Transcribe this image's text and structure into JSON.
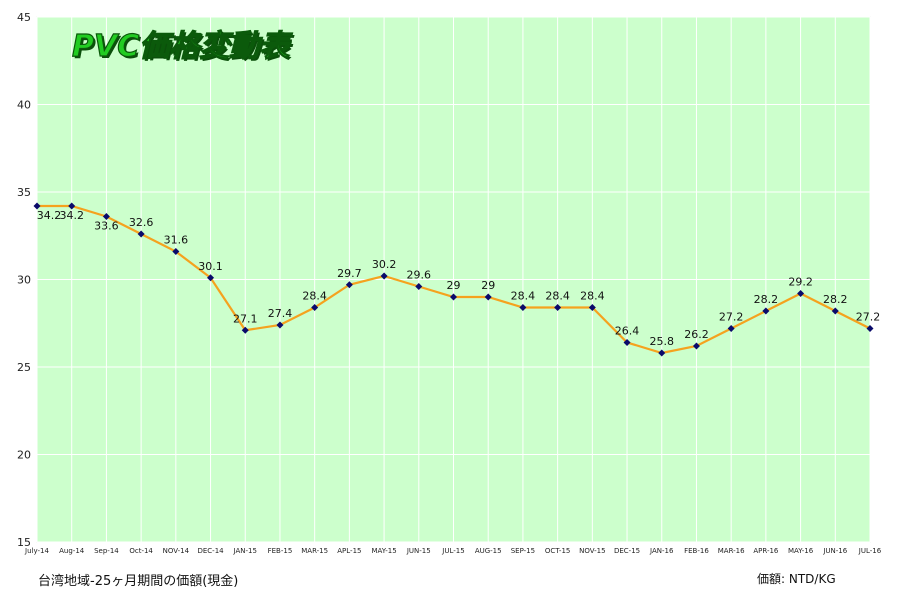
{
  "chart_data": {
    "type": "line",
    "title": "PVC価格変動表",
    "categories": [
      "July-14",
      "Aug-14",
      "Sep-14",
      "Oct-14",
      "NOV-14",
      "DEC-14",
      "JAN-15",
      "FEB-15",
      "MAR-15",
      "APL-15",
      "MAY-15",
      "JUN-15",
      "JUL-15",
      "AUG-15",
      "SEP-15",
      "OCT-15",
      "NOV-15",
      "DEC-15",
      "JAN-16",
      "FEB-16",
      "MAR-16",
      "APR-16",
      "MAY-16",
      "JUN-16",
      "JUL-16"
    ],
    "values": [
      34.2,
      34.2,
      33.6,
      32.6,
      31.6,
      30.1,
      27.1,
      27.4,
      28.4,
      29.7,
      30.2,
      29.6,
      29,
      29,
      28.4,
      28.4,
      28.4,
      26.4,
      25.8,
      26.2,
      27.2,
      28.2,
      29.2,
      28.2,
      27.2
    ],
    "labels": [
      "34.2",
      "34.2",
      "33.6",
      "32.6",
      "31.6",
      "30.1",
      "27.1",
      "27.4",
      "28.4",
      "29.7",
      "30.2",
      "29.6",
      "29",
      "29",
      "28.4",
      "28.4",
      "28.4",
      "26.4",
      "25.8",
      "26.2",
      "27.2",
      "28.2",
      "29.2",
      "28.2",
      "27.2"
    ],
    "yticks": [
      "15",
      "20",
      "25",
      "30",
      "35",
      "40",
      "45"
    ],
    "ylim": [
      15,
      45
    ],
    "grid": true,
    "colors": {
      "line": "#f5a21e",
      "marker": "#0a0a6a",
      "plot_bg": "#ccffcc",
      "grid": "#ffffff"
    }
  },
  "footer": {
    "left": "台湾地域-25ヶ月期間の価額(現金)",
    "right": "価額: NTD/KG"
  }
}
